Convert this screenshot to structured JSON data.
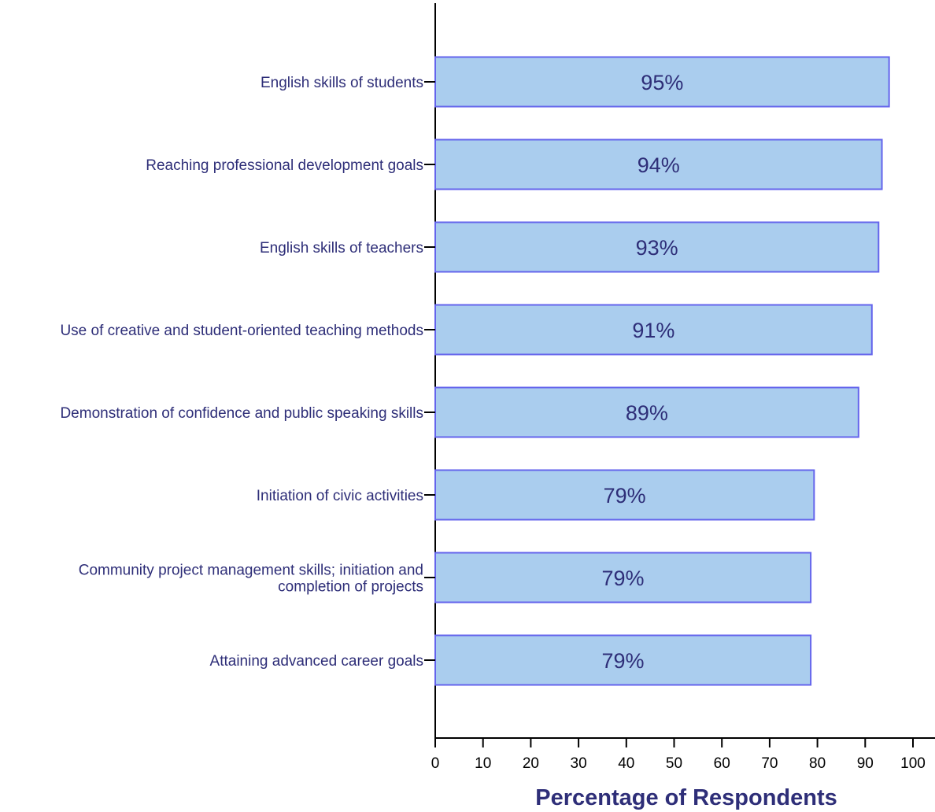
{
  "chart_data": {
    "type": "bar",
    "orientation": "horizontal",
    "categories": [
      [
        "English skills of students"
      ],
      [
        "Reaching professional development goals"
      ],
      [
        "English skills of teachers"
      ],
      [
        "Use of creative and student-oriented teaching methods"
      ],
      [
        "Demonstration of confidence and public speaking skills"
      ],
      [
        "Initiation of civic activities"
      ],
      [
        "Community project management skills; initiation and",
        "completion of projects"
      ],
      [
        "Attaining advanced career goals"
      ]
    ],
    "values": [
      95,
      93.5,
      92.8,
      91.4,
      88.6,
      79.3,
      78.6,
      78.6
    ],
    "data_labels": [
      "95%",
      "94%",
      "93%",
      "91%",
      "89%",
      "79%",
      "79%",
      "79%"
    ],
    "title": "",
    "xlabel": "Percentage of Respondents",
    "ylabel": "",
    "xlim": [
      0,
      100
    ],
    "xticks": [
      "0",
      "10",
      "20",
      "30",
      "40",
      "50",
      "60",
      "70",
      "80",
      "90",
      "100"
    ],
    "grid": false,
    "legend": "none",
    "colors": {
      "bar_fill": "#aacdee",
      "bar_edge": "#6464ec",
      "text": "#2e2e78",
      "axis": "#000000"
    }
  }
}
